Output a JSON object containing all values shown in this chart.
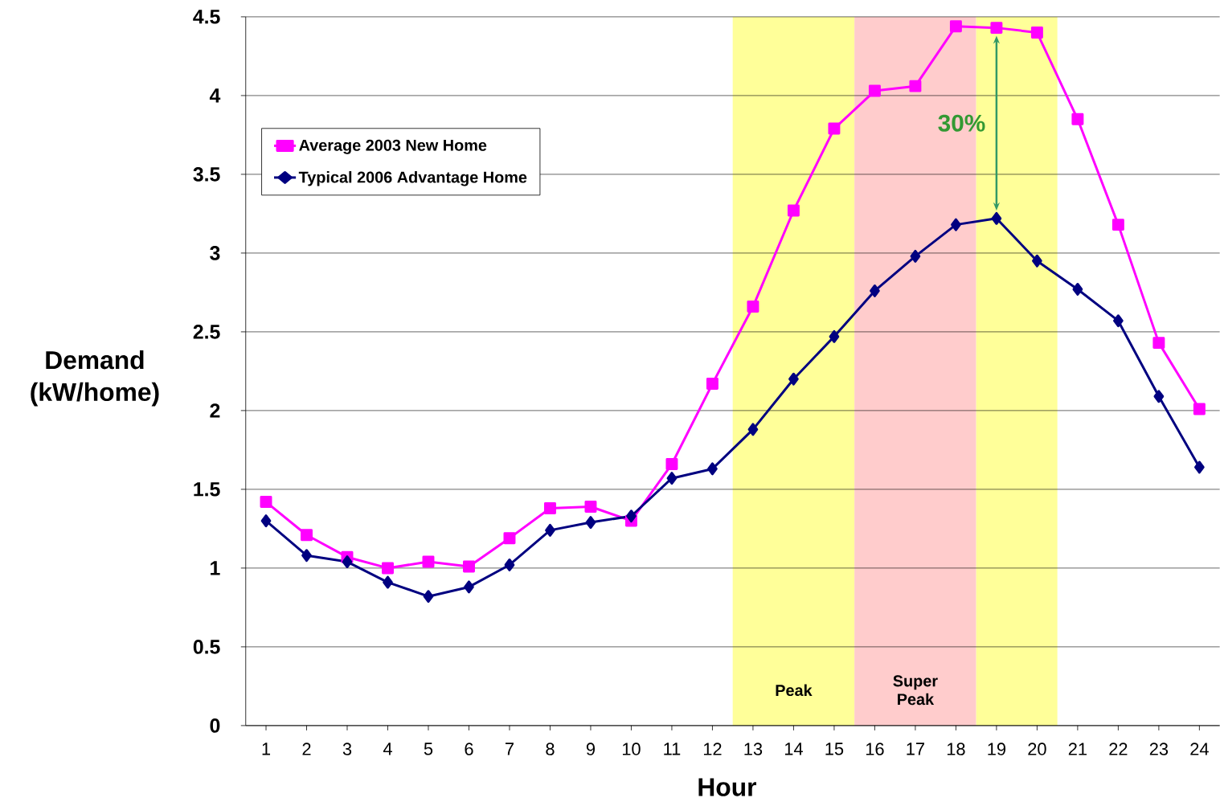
{
  "chart_data": {
    "type": "line",
    "xlabel": "Hour",
    "ylabel": "Demand (kW/home)",
    "x": [
      1,
      2,
      3,
      4,
      5,
      6,
      7,
      8,
      9,
      10,
      11,
      12,
      13,
      14,
      15,
      16,
      17,
      18,
      19,
      20,
      21,
      22,
      23,
      24
    ],
    "series": [
      {
        "name": "Average 2003 New Home",
        "color": "#ff00ff",
        "marker": "square",
        "values": [
          1.42,
          1.21,
          1.07,
          1.0,
          1.04,
          1.01,
          1.19,
          1.38,
          1.39,
          1.3,
          1.66,
          2.17,
          2.66,
          3.27,
          3.79,
          4.03,
          4.06,
          4.44,
          4.43,
          4.4,
          3.85,
          3.18,
          2.43,
          2.01
        ]
      },
      {
        "name": "Typical 2006 Advantage Home",
        "color": "#000080",
        "marker": "diamond",
        "values": [
          1.3,
          1.08,
          1.04,
          0.91,
          0.82,
          0.88,
          1.02,
          1.24,
          1.29,
          1.33,
          1.57,
          1.63,
          1.88,
          2.2,
          2.47,
          2.76,
          2.98,
          3.18,
          3.22,
          2.95,
          2.77,
          2.57,
          2.09,
          1.64
        ]
      }
    ],
    "xlim": [
      0.5,
      24.5
    ],
    "xticks": [
      1,
      2,
      3,
      4,
      5,
      6,
      7,
      8,
      9,
      10,
      11,
      12,
      13,
      14,
      15,
      16,
      17,
      18,
      19,
      20,
      21,
      22,
      23,
      24
    ],
    "ylim": [
      0,
      4.5
    ],
    "yticks": [
      0,
      0.5,
      1,
      1.5,
      2,
      2.5,
      3,
      3.5,
      4,
      4.5
    ],
    "grid": "y",
    "legend": "top left",
    "bands": [
      {
        "axis": "x",
        "from": 12.5,
        "to": 15.5,
        "label": "Peak",
        "color": "#ffff99"
      },
      {
        "axis": "x",
        "from": 15.5,
        "to": 18.5,
        "label": "Super Peak",
        "color": "#ffcccc"
      },
      {
        "axis": "x",
        "from": 18.5,
        "to": 20.5,
        "color": "#ffff99"
      }
    ],
    "annotations": [
      "30%"
    ]
  }
}
